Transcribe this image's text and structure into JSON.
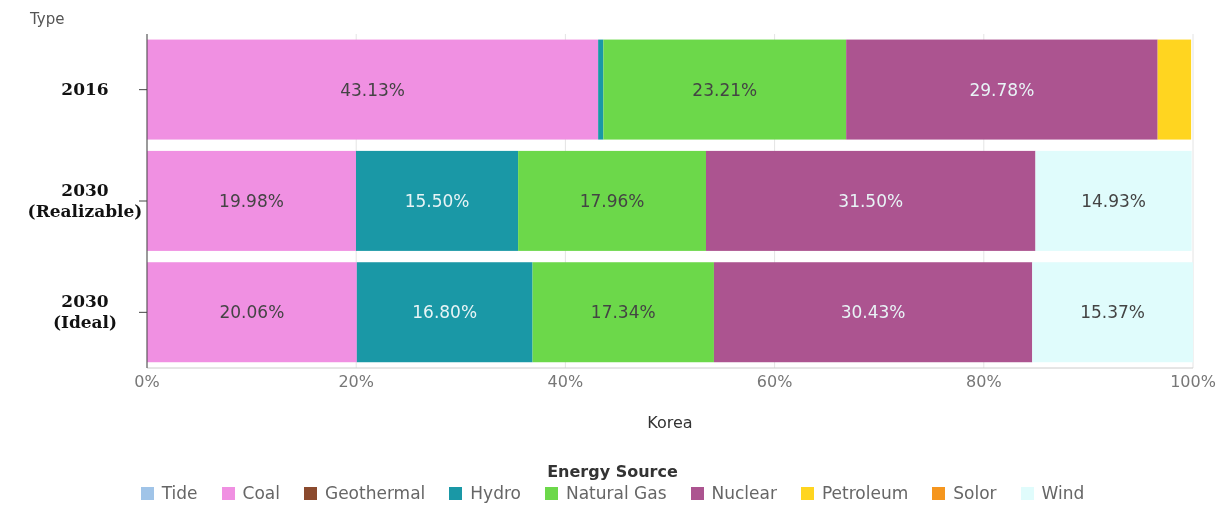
{
  "chart_data": {
    "type": "bar",
    "orientation": "horizontal",
    "stacked": true,
    "ylabel": "Type",
    "xlabel": "Korea",
    "legend_title": "Energy Source",
    "legend": "bottom",
    "grid": "x",
    "categories": [
      "2016",
      "2030 (Realizable)",
      "2030 (Ideal)"
    ],
    "xlim": [
      0,
      100
    ],
    "xticks": [
      {
        "value": 0,
        "label": "0%"
      },
      {
        "value": 20,
        "label": "20%"
      },
      {
        "value": 40,
        "label": "40%"
      },
      {
        "value": 60,
        "label": "60%"
      },
      {
        "value": 80,
        "label": "80%"
      },
      {
        "value": 100,
        "label": "100%"
      }
    ],
    "series": [
      {
        "name": "Tide",
        "color": "#a0c4e8",
        "values": [
          null,
          null,
          null
        ]
      },
      {
        "name": "Coal",
        "color": "#f090e2",
        "values": [
          43.13,
          19.98,
          20.06
        ],
        "value_labels": [
          "43.13%",
          "19.98%",
          "20.06%"
        ]
      },
      {
        "name": "Geothermal",
        "color": "#8b4a2e",
        "values": [
          null,
          null,
          null
        ]
      },
      {
        "name": "Hydro",
        "color": "#1a98a6",
        "values": [
          0.5,
          15.5,
          16.8
        ],
        "value_labels": [
          null,
          "15.50%",
          "16.80%"
        ]
      },
      {
        "name": "Natural Gas",
        "color": "#6cd84a",
        "values": [
          23.21,
          17.96,
          17.34
        ],
        "value_labels": [
          "23.21%",
          "17.96%",
          "17.34%"
        ]
      },
      {
        "name": "Nuclear",
        "color": "#ac5490",
        "values": [
          29.78,
          31.5,
          30.43
        ],
        "value_labels": [
          "29.78%",
          "31.50%",
          "30.43%"
        ]
      },
      {
        "name": "Petroleum",
        "color": "#ffd520",
        "values": [
          3.2,
          null,
          null
        ]
      },
      {
        "name": "Solor",
        "color": "#f5961e",
        "values": [
          null,
          null,
          null
        ]
      },
      {
        "name": "Wind",
        "color": "#e0fcfc",
        "values": [
          null,
          14.93,
          15.37
        ],
        "value_labels": [
          null,
          "14.93%",
          "15.37%"
        ]
      }
    ]
  }
}
